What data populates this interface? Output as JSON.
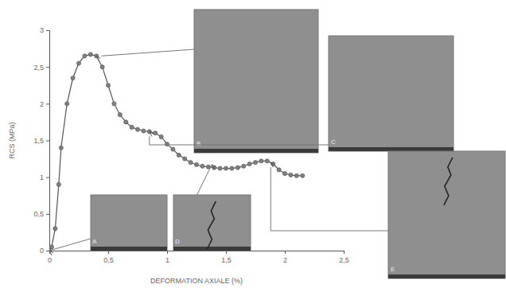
{
  "chart_data": {
    "type": "line",
    "x_label": "DEFORMATION AXIALE (%)",
    "y_label": "RCS (MPa)",
    "x": [
      0,
      0.02,
      0.05,
      0.08,
      0.1,
      0.15,
      0.2,
      0.25,
      0.3,
      0.35,
      0.4,
      0.45,
      0.5,
      0.55,
      0.6,
      0.65,
      0.7,
      0.75,
      0.8,
      0.85,
      0.9,
      0.95,
      1.0,
      1.05,
      1.1,
      1.15,
      1.2,
      1.25,
      1.3,
      1.35,
      1.4,
      1.45,
      1.5,
      1.55,
      1.6,
      1.65,
      1.7,
      1.75,
      1.8,
      1.85,
      1.9,
      1.95,
      2.0,
      2.05,
      2.1,
      2.15
    ],
    "values": [
      0,
      0.05,
      0.3,
      0.9,
      1.4,
      2.0,
      2.35,
      2.55,
      2.65,
      2.67,
      2.65,
      2.5,
      2.25,
      2.0,
      1.85,
      1.75,
      1.68,
      1.65,
      1.63,
      1.62,
      1.6,
      1.55,
      1.45,
      1.38,
      1.3,
      1.25,
      1.2,
      1.17,
      1.15,
      1.14,
      1.13,
      1.12,
      1.12,
      1.12,
      1.13,
      1.15,
      1.18,
      1.2,
      1.22,
      1.22,
      1.18,
      1.1,
      1.05,
      1.03,
      1.02,
      1.02
    ],
    "color": "#7f7f7f",
    "marker": "circle",
    "line_style": "solid",
    "xlim": [
      0,
      2.5
    ],
    "xticks": [
      0,
      {
        "value": 0.5,
        "label": "0,5"
      },
      1,
      {
        "value": 1.5,
        "label": "1,5"
      },
      2,
      {
        "value": 2.5,
        "label": "2,5"
      }
    ],
    "ylim": [
      0,
      3
    ],
    "yticks": [
      0,
      {
        "value": 0.5,
        "label": "0,5"
      },
      1,
      {
        "value": 1.5,
        "label": "1,5"
      },
      2,
      {
        "value": 2.5,
        "label": "2,5"
      },
      3
    ],
    "grid": false,
    "annotations": [
      {
        "text": "A",
        "x": 0,
        "y": 0
      },
      {
        "text": "B",
        "x": 0.4,
        "y": 2.65
      },
      {
        "text": "C",
        "x": 0.85,
        "y": 1.62
      },
      {
        "text": "D",
        "x": 1.38,
        "y": 1.17
      },
      {
        "text": "E",
        "x": 1.88,
        "y": 1.2
      }
    ]
  }
}
